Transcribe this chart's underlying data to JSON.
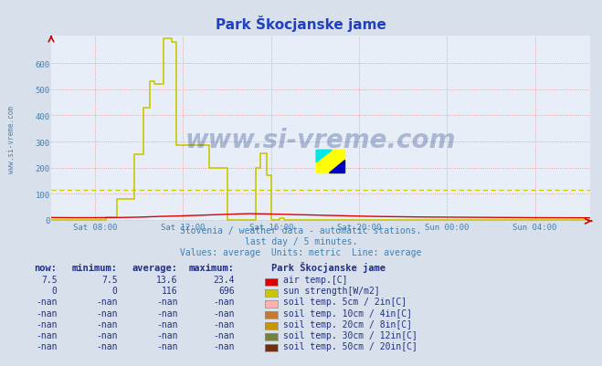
{
  "title": "Park Škocjanske jame",
  "bg_color": "#d8e0ec",
  "plot_bg_color": "#e8eef8",
  "title_color": "#2040c0",
  "text_color": "#4080b0",
  "xlim": [
    6,
    30.5
  ],
  "ylim": [
    0,
    700
  ],
  "yticks": [
    0,
    100,
    200,
    300,
    400,
    500,
    600
  ],
  "xtick_labels": [
    "Sat 08:00",
    "Sat 12:00",
    "Sat 16:00",
    "Sat 20:00",
    "Sun 00:00",
    "Sun 04:00"
  ],
  "xtick_hours": [
    8,
    12,
    16,
    20,
    24,
    28
  ],
  "avg_line_value": 116,
  "avg_line_color": "#c8c800",
  "watermark": "www.si-vreme.com",
  "footnote1": "Slovenia / weather data - automatic stations.",
  "footnote2": "last day / 5 minutes.",
  "footnote3": "Values: average  Units: metric  Line: average",
  "legend_header": "Park Škocjanske jame",
  "rows": [
    {
      "now": "7.5",
      "min": "7.5",
      "avg": "13.6",
      "max": "23.4",
      "label": "air temp.[C]",
      "color": "#dd0000"
    },
    {
      "now": "0",
      "min": "0",
      "avg": "116",
      "max": "696",
      "label": "sun strength[W/m2]",
      "color": "#c8c800"
    },
    {
      "now": "-nan",
      "min": "-nan",
      "avg": "-nan",
      "max": "-nan",
      "label": "soil temp. 5cm / 2in[C]",
      "color": "#ffb0b0"
    },
    {
      "now": "-nan",
      "min": "-nan",
      "avg": "-nan",
      "max": "-nan",
      "label": "soil temp. 10cm / 4in[C]",
      "color": "#c87830"
    },
    {
      "now": "-nan",
      "min": "-nan",
      "avg": "-nan",
      "max": "-nan",
      "label": "soil temp. 20cm / 8in[C]",
      "color": "#c89600"
    },
    {
      "now": "-nan",
      "min": "-nan",
      "avg": "-nan",
      "max": "-nan",
      "label": "soil temp. 30cm / 12in[C]",
      "color": "#788040"
    },
    {
      "now": "-nan",
      "min": "-nan",
      "avg": "-nan",
      "max": "-nan",
      "label": "soil temp. 50cm / 20in[C]",
      "color": "#703010"
    }
  ],
  "sun_profile": [
    [
      6.0,
      0
    ],
    [
      8.4,
      0
    ],
    [
      8.5,
      10
    ],
    [
      9.0,
      80
    ],
    [
      9.5,
      80
    ],
    [
      9.8,
      250
    ],
    [
      10.0,
      250
    ],
    [
      10.2,
      430
    ],
    [
      10.5,
      530
    ],
    [
      10.7,
      520
    ],
    [
      11.0,
      520
    ],
    [
      11.1,
      696
    ],
    [
      11.5,
      680
    ],
    [
      11.6,
      680
    ],
    [
      11.7,
      285
    ],
    [
      12.0,
      285
    ],
    [
      12.5,
      285
    ],
    [
      13.0,
      285
    ],
    [
      13.2,
      200
    ],
    [
      13.5,
      200
    ],
    [
      14.0,
      0
    ],
    [
      15.2,
      0
    ],
    [
      15.3,
      200
    ],
    [
      15.5,
      255
    ],
    [
      15.7,
      255
    ],
    [
      15.8,
      170
    ],
    [
      16.0,
      0
    ],
    [
      16.3,
      0
    ],
    [
      16.4,
      5
    ],
    [
      16.5,
      5
    ],
    [
      16.6,
      0
    ],
    [
      17.0,
      0
    ],
    [
      30.5,
      0
    ]
  ],
  "air_temp_profile": [
    [
      6.0,
      8.5
    ],
    [
      7.0,
      8.0
    ],
    [
      8.0,
      8.0
    ],
    [
      9.0,
      8.5
    ],
    [
      10.0,
      10.0
    ],
    [
      11.0,
      13.0
    ],
    [
      12.0,
      15.0
    ],
    [
      13.0,
      18.0
    ],
    [
      14.0,
      21.0
    ],
    [
      15.0,
      23.4
    ],
    [
      16.0,
      22.0
    ],
    [
      17.0,
      20.0
    ],
    [
      18.0,
      18.0
    ],
    [
      19.0,
      16.0
    ],
    [
      20.0,
      14.0
    ],
    [
      21.0,
      12.5
    ],
    [
      22.0,
      11.5
    ],
    [
      23.0,
      10.5
    ],
    [
      24.0,
      10.0
    ],
    [
      25.0,
      9.5
    ],
    [
      26.0,
      9.0
    ],
    [
      27.0,
      8.5
    ],
    [
      28.0,
      8.0
    ],
    [
      29.0,
      7.8
    ],
    [
      30.5,
      7.5
    ]
  ]
}
